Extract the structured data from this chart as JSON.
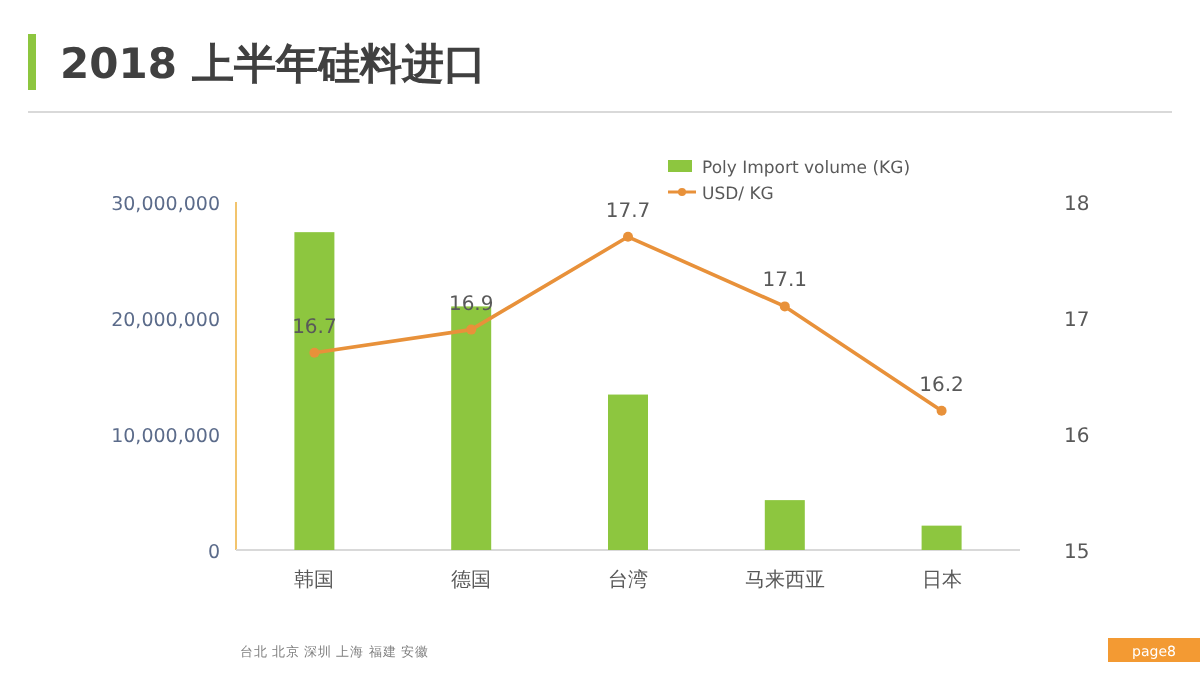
{
  "chart_data": {
    "type": "bar",
    "title": "2018 上半年硅料进口",
    "categories": [
      "韩国",
      "德国",
      "台湾",
      "马来西亚",
      "日本"
    ],
    "series": [
      {
        "name": "Poly Import volume (KG)",
        "type": "bar",
        "color": "#8dc63f",
        "values": [
          27400000,
          21000000,
          13400000,
          4300000,
          2100000
        ]
      },
      {
        "name": "USD/ KG",
        "type": "line",
        "axis": "y2",
        "color": "#e8913a",
        "marker": "circle",
        "values": [
          16.7,
          16.9,
          17.7,
          17.1,
          16.2
        ],
        "value_labels": [
          "16.7",
          "16.9",
          "17.7",
          "17.1",
          "16.2"
        ]
      }
    ],
    "ylim": [
      0,
      30000000
    ],
    "yticks": [
      {
        "value": 0,
        "label": "0"
      },
      {
        "value": 10000000,
        "label": "10,000,000"
      },
      {
        "value": 20000000,
        "label": "20,000,000"
      },
      {
        "value": 30000000,
        "label": "30,000,000"
      }
    ],
    "y2lim": [
      15,
      18
    ],
    "y2ticks": [
      15,
      16,
      17,
      18
    ],
    "legend": "top right",
    "grid": false,
    "annotations": [
      "台北 北京 深圳 上海 福建 安徽",
      "page8"
    ]
  }
}
